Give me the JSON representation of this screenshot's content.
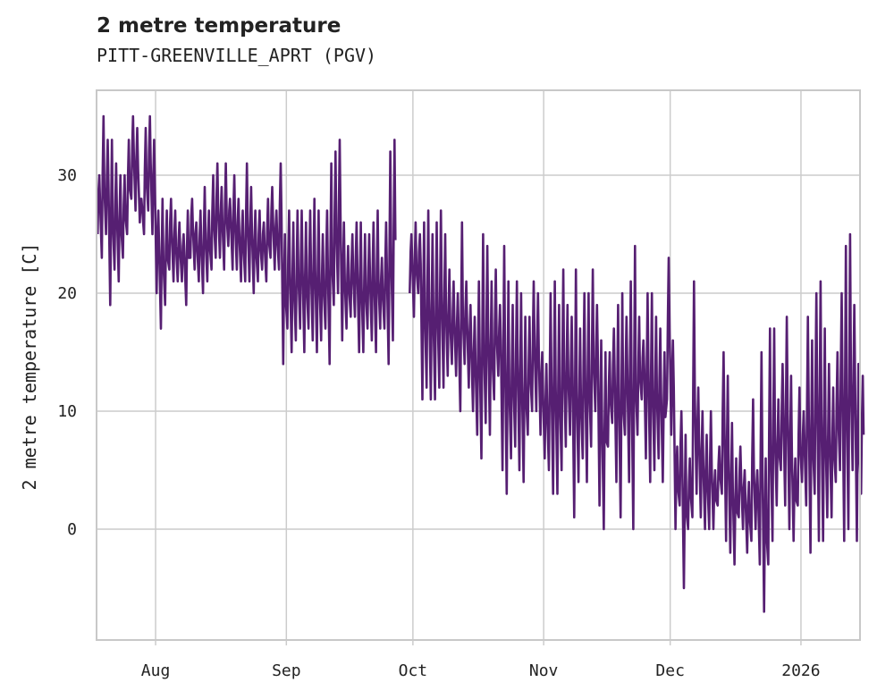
{
  "chart_data": {
    "type": "line",
    "title": "2 metre temperature",
    "subtitle": "PITT-GREENVILLE_APRT (PGV)",
    "xlabel": "",
    "ylabel": "2 metre temperature [C]",
    "start_date": "2025-07-18",
    "xlim": [
      "2025-07-18",
      "2026-01-15"
    ],
    "ylim": [
      -9.4,
      37.2
    ],
    "grid": true,
    "color": "#561f72",
    "x_ticks": [
      {
        "label": "Aug",
        "date": "2025-08-01"
      },
      {
        "label": "Sep",
        "date": "2025-09-01"
      },
      {
        "label": "Oct",
        "date": "2025-10-01"
      },
      {
        "label": "Nov",
        "date": "2025-11-01"
      },
      {
        "label": "Dec",
        "date": "2025-12-01"
      },
      {
        "label": "2026",
        "date": "2026-01-01"
      }
    ],
    "y_ticks": [
      {
        "label": "0",
        "value": 0
      },
      {
        "label": "10",
        "value": 10
      },
      {
        "label": "20",
        "value": 20
      },
      {
        "label": "30",
        "value": 30
      }
    ],
    "daily_max": [
      30,
      35,
      33,
      33,
      31,
      30,
      30,
      33,
      35,
      34,
      28,
      34,
      35,
      33,
      27,
      28,
      27,
      28,
      27,
      26,
      25,
      27,
      28,
      26,
      27,
      29,
      27,
      30,
      31,
      29,
      31,
      28,
      30,
      28,
      27,
      31,
      29,
      27,
      27,
      26,
      28,
      29,
      27,
      31,
      25,
      27,
      26,
      27,
      27,
      26,
      27,
      28,
      27,
      25,
      27,
      31,
      32,
      33,
      26,
      24,
      25,
      26,
      26,
      25,
      25,
      26,
      27,
      23,
      26,
      32,
      33,
      null,
      null,
      null,
      25,
      26,
      25,
      26,
      27,
      25,
      26,
      27,
      25,
      22,
      21,
      20,
      26,
      21,
      19,
      18,
      21,
      25,
      24,
      21,
      22,
      19,
      24,
      21,
      19,
      21,
      20,
      18,
      18,
      21,
      20,
      15,
      14,
      20,
      21,
      19,
      22,
      19,
      18,
      22,
      17,
      20,
      20,
      22,
      19,
      16,
      15,
      15,
      17,
      19,
      20,
      18,
      21,
      24,
      18,
      16,
      20,
      20,
      18,
      17,
      15,
      23,
      16,
      7,
      10,
      8,
      6,
      21,
      12,
      10,
      8,
      10,
      5,
      7,
      15,
      13,
      9,
      6,
      7,
      5,
      4,
      11,
      5,
      15,
      6,
      17,
      17,
      11,
      14,
      18,
      13,
      6,
      12,
      10,
      18,
      16,
      20,
      21,
      17,
      14,
      12,
      15,
      20,
      24,
      25,
      19,
      14,
      13
    ],
    "daily_min": [
      25,
      23,
      25,
      19,
      22,
      21,
      23,
      25,
      28,
      27,
      26,
      25,
      27,
      25,
      20,
      17,
      19,
      22,
      21,
      21,
      21,
      19,
      23,
      22,
      21,
      20,
      21,
      22,
      23,
      23,
      22,
      24,
      22,
      22,
      21,
      21,
      21,
      20,
      21,
      22,
      21,
      23,
      22,
      22,
      14,
      17,
      15,
      16,
      17,
      15,
      17,
      16,
      15,
      16,
      17,
      14,
      19,
      20,
      16,
      17,
      18,
      18,
      15,
      15,
      17,
      16,
      15,
      17,
      17,
      14,
      16,
      null,
      null,
      null,
      20,
      18,
      20,
      11,
      12,
      11,
      11,
      12,
      12,
      13,
      14,
      13,
      10,
      14,
      12,
      10,
      8,
      6,
      9,
      8,
      11,
      13,
      5,
      3,
      6,
      7,
      5,
      4,
      8,
      10,
      10,
      8,
      6,
      5,
      3,
      3,
      5,
      7,
      8,
      1,
      4,
      6,
      4,
      7,
      10,
      2,
      0,
      7,
      9,
      4,
      1,
      8,
      4,
      0,
      8,
      11,
      6,
      4,
      5,
      6,
      4,
      11,
      8,
      0,
      2,
      -5,
      0,
      1,
      3,
      1,
      0,
      0,
      0,
      2,
      3,
      -1,
      -2,
      -3,
      1,
      0,
      -2,
      -1,
      0,
      -3,
      -7,
      -3,
      -1,
      2,
      5,
      2,
      0,
      -1,
      2,
      4,
      2,
      -2,
      3,
      -1,
      -1,
      1,
      1,
      4,
      5,
      -1,
      0,
      5,
      -1,
      3
    ]
  }
}
